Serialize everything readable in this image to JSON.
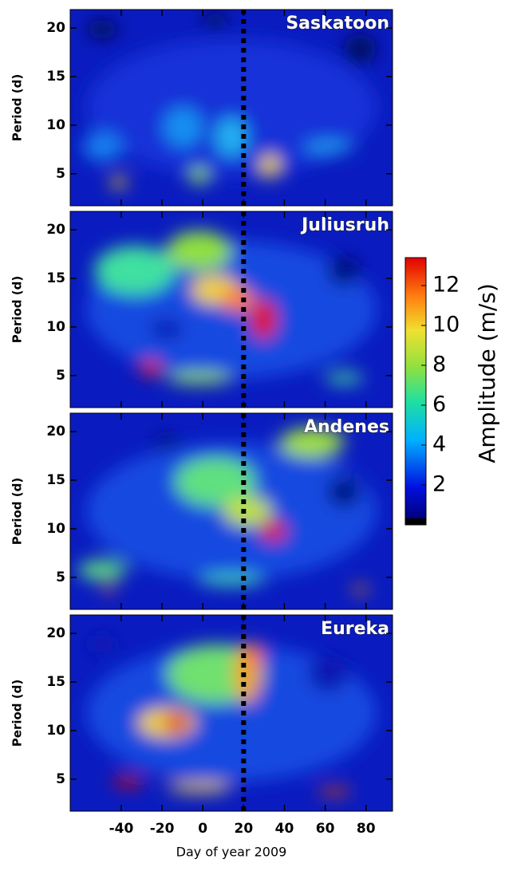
{
  "chart_data": [
    {
      "type": "heatmap",
      "title": "Saskatoon",
      "ylabel": "Period (d)",
      "xlim": [
        -65,
        93
      ],
      "xticks": [
        -40,
        -20,
        0,
        20,
        40,
        60,
        80
      ],
      "ylim": [
        1.7,
        21.9
      ],
      "yticks": [
        5,
        10,
        15,
        20
      ],
      "event_day": 20
    },
    {
      "type": "heatmap",
      "title": "Juliusruh",
      "ylabel": "Period (d)",
      "xlim": [
        -65,
        93
      ],
      "xticks": [
        -40,
        -20,
        0,
        20,
        40,
        60,
        80
      ],
      "ylim": [
        1.7,
        21.9
      ],
      "yticks": [
        5,
        10,
        15,
        20
      ],
      "event_day": 20
    },
    {
      "type": "heatmap",
      "title": "Andenes",
      "ylabel": "Period (d)",
      "xlim": [
        -65,
        93
      ],
      "xticks": [
        -40,
        -20,
        0,
        20,
        40,
        60,
        80
      ],
      "ylim": [
        1.7,
        21.9
      ],
      "yticks": [
        5,
        10,
        15,
        20
      ],
      "event_day": 20
    },
    {
      "type": "heatmap",
      "title": "Eureka",
      "ylabel": "Period (d)",
      "xlabel": "Day of year 2009",
      "xlim": [
        -65,
        93
      ],
      "xticks": [
        -40,
        -20,
        0,
        20,
        40,
        60,
        80
      ],
      "ylim": [
        1.7,
        21.9
      ],
      "yticks": [
        5,
        10,
        15,
        20
      ],
      "event_day": 20
    },
    {
      "type": "colorbar",
      "label": "Amplitude (m/s)",
      "lim": [
        0,
        13.4
      ],
      "ticks": [
        2,
        4,
        6,
        8,
        10,
        12
      ]
    }
  ]
}
